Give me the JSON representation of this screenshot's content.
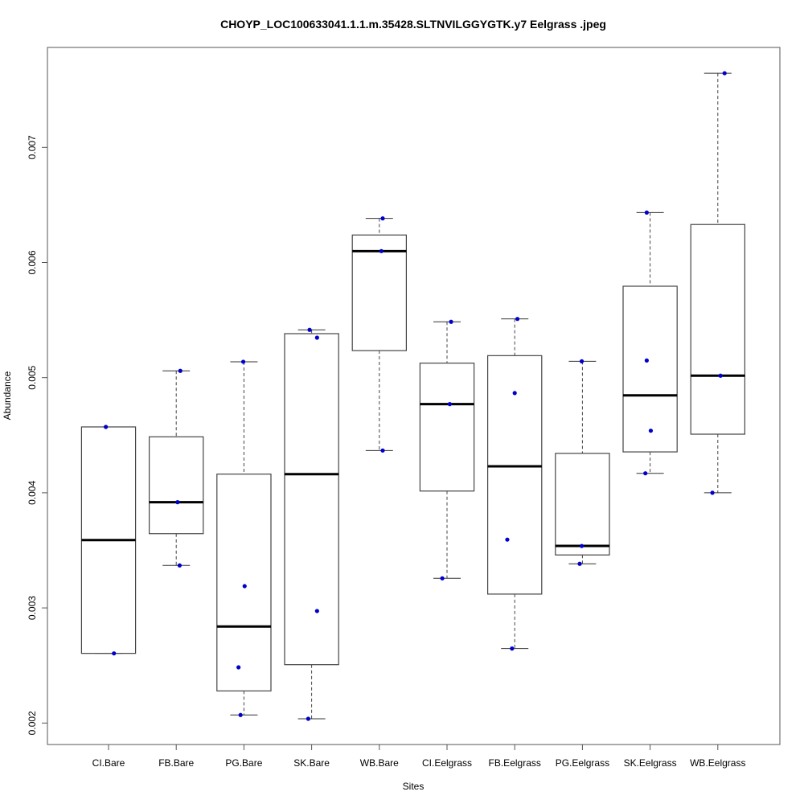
{
  "chart_data": {
    "type": "box",
    "title": "CHOYP_LOC100633041.1.1.m.35428.SLTNVILGGYGTK.y7 Eelgrass .jpeg",
    "xlabel": "Sites",
    "ylabel": "Abundance",
    "ylim": [
      0.00182,
      0.00786
    ],
    "yticks": [
      0.002,
      0.003,
      0.004,
      0.005,
      0.006,
      0.007
    ],
    "ytick_labels": [
      "0.002",
      "0.003",
      "0.004",
      "0.005",
      "0.006",
      "0.007"
    ],
    "grid": false,
    "point_color": "#0000cc",
    "categories": [
      "CI.Bare",
      "FB.Bare",
      "PG.Bare",
      "SK.Bare",
      "WB.Bare",
      "CI.Eelgrass",
      "FB.Eelgrass",
      "PG.Eelgrass",
      "SK.Eelgrass",
      "WB.Eelgrass"
    ],
    "boxes": [
      {
        "category": "CI.Bare",
        "min": 0.002605,
        "q1": 0.002605,
        "median": 0.003589,
        "q3": 0.004572,
        "max": 0.004572,
        "points": [
          {
            "jitter": -0.04,
            "value": 0.004572
          },
          {
            "jitter": 0.08,
            "value": 0.002605
          }
        ]
      },
      {
        "category": "FB.Bare",
        "min": 0.003369,
        "q1": 0.003645,
        "median": 0.003918,
        "q3": 0.004486,
        "max": 0.005059,
        "points": [
          {
            "jitter": 0.06,
            "value": 0.005059
          },
          {
            "jitter": 0.02,
            "value": 0.003918
          },
          {
            "jitter": 0.05,
            "value": 0.003369
          }
        ]
      },
      {
        "category": "PG.Bare",
        "min": 0.00207,
        "q1": 0.002279,
        "median": 0.002838,
        "q3": 0.004162,
        "max": 0.005138,
        "points": [
          {
            "jitter": -0.01,
            "value": 0.005138
          },
          {
            "jitter": 0.01,
            "value": 0.003189
          },
          {
            "jitter": -0.08,
            "value": 0.002484
          },
          {
            "jitter": -0.05,
            "value": 0.00207
          }
        ]
      },
      {
        "category": "SK.Bare",
        "min": 0.002037,
        "q1": 0.002507,
        "median": 0.004162,
        "q3": 0.005382,
        "max": 0.005415,
        "points": [
          {
            "jitter": -0.03,
            "value": 0.005415
          },
          {
            "jitter": 0.08,
            "value": 0.005347
          },
          {
            "jitter": 0.08,
            "value": 0.002973
          },
          {
            "jitter": -0.05,
            "value": 0.002037
          }
        ]
      },
      {
        "category": "WB.Bare",
        "min": 0.004367,
        "q1": 0.005235,
        "median": 0.006099,
        "q3": 0.006239,
        "max": 0.006383,
        "points": [
          {
            "jitter": 0.05,
            "value": 0.006383
          },
          {
            "jitter": 0.03,
            "value": 0.006099
          },
          {
            "jitter": 0.05,
            "value": 0.004367
          }
        ]
      },
      {
        "category": "CI.Eelgrass",
        "min": 0.003257,
        "q1": 0.004015,
        "median": 0.00477,
        "q3": 0.005126,
        "max": 0.005485,
        "points": [
          {
            "jitter": 0.06,
            "value": 0.005485
          },
          {
            "jitter": 0.04,
            "value": 0.00477
          },
          {
            "jitter": -0.07,
            "value": 0.003257
          }
        ]
      },
      {
        "category": "FB.Eelgrass",
        "min": 0.002647,
        "q1": 0.00312,
        "median": 0.00423,
        "q3": 0.005191,
        "max": 0.00551,
        "points": [
          {
            "jitter": 0.04,
            "value": 0.00551
          },
          {
            "jitter": 0.0,
            "value": 0.004866
          },
          {
            "jitter": -0.11,
            "value": 0.003593
          },
          {
            "jitter": -0.04,
            "value": 0.002647
          }
        ]
      },
      {
        "category": "PG.Eelgrass",
        "min": 0.003383,
        "q1": 0.00346,
        "median": 0.003538,
        "q3": 0.004342,
        "max": 0.005142,
        "points": [
          {
            "jitter": -0.01,
            "value": 0.005142
          },
          {
            "jitter": -0.01,
            "value": 0.003538
          },
          {
            "jitter": -0.04,
            "value": 0.003383
          }
        ]
      },
      {
        "category": "SK.Eelgrass",
        "min": 0.004169,
        "q1": 0.004355,
        "median": 0.004846,
        "q3": 0.005794,
        "max": 0.006434,
        "points": [
          {
            "jitter": -0.05,
            "value": 0.006434
          },
          {
            "jitter": -0.05,
            "value": 0.005149
          },
          {
            "jitter": 0.01,
            "value": 0.004539
          },
          {
            "jitter": -0.07,
            "value": 0.004169
          }
        ]
      },
      {
        "category": "WB.Eelgrass",
        "min": 0.004,
        "q1": 0.004509,
        "median": 0.005017,
        "q3": 0.00633,
        "max": 0.007644,
        "points": [
          {
            "jitter": 0.1,
            "value": 0.007644
          },
          {
            "jitter": 0.04,
            "value": 0.005017
          },
          {
            "jitter": -0.08,
            "value": 0.004
          }
        ]
      }
    ]
  }
}
